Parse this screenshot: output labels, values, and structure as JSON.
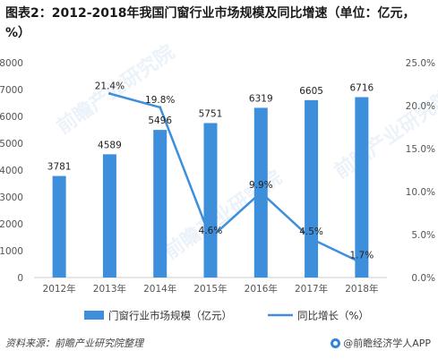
{
  "title": "图表2：2012-2018年我国门窗行业市场规模及同比增速（单位：亿元，%）",
  "footer": {
    "source": "资料来源：前瞻产业研究院整理",
    "brand": "@前瞻经济学人APP"
  },
  "watermark": "前瞻产业研究院",
  "colors": {
    "bar": "#3e8fdb",
    "line": "#3e8fdb"
  },
  "chart_data": {
    "type": "bar",
    "categories": [
      "2012年",
      "2013年",
      "2014年",
      "2015年",
      "2016年",
      "2017年",
      "2018年"
    ],
    "series": [
      {
        "name": "门窗行业市场规模（亿元）",
        "type": "bar",
        "axis": "left",
        "values": [
          3781,
          4589,
          5496,
          5751,
          6319,
          6605,
          6716
        ],
        "labels": [
          "3781",
          "4589",
          "5496",
          "5751",
          "6319",
          "6605",
          "6716"
        ]
      },
      {
        "name": "同比增长（%）",
        "type": "line",
        "axis": "right",
        "values": [
          null,
          21.4,
          19.8,
          4.6,
          9.9,
          4.5,
          1.7
        ],
        "labels": [
          "",
          "21.4%",
          "19.8%",
          "4.6%",
          "9.9%",
          "4.5%",
          "1.7%"
        ]
      }
    ],
    "y_left": {
      "ylim": [
        0,
        8000
      ],
      "ticks": [
        0,
        1000,
        2000,
        3000,
        4000,
        5000,
        6000,
        7000,
        8000
      ],
      "tick_labels": [
        "0",
        "1000",
        "2000",
        "3000",
        "4000",
        "5000",
        "6000",
        "7000",
        "8000"
      ]
    },
    "y_right": {
      "ylim": [
        0,
        25
      ],
      "ticks": [
        0,
        5,
        10,
        15,
        20,
        25
      ],
      "tick_labels": [
        "0.0%",
        "5.0%",
        "10.0%",
        "15.0%",
        "20.0%",
        "25.0%"
      ]
    },
    "legend_position": "bottom",
    "grid": false
  }
}
